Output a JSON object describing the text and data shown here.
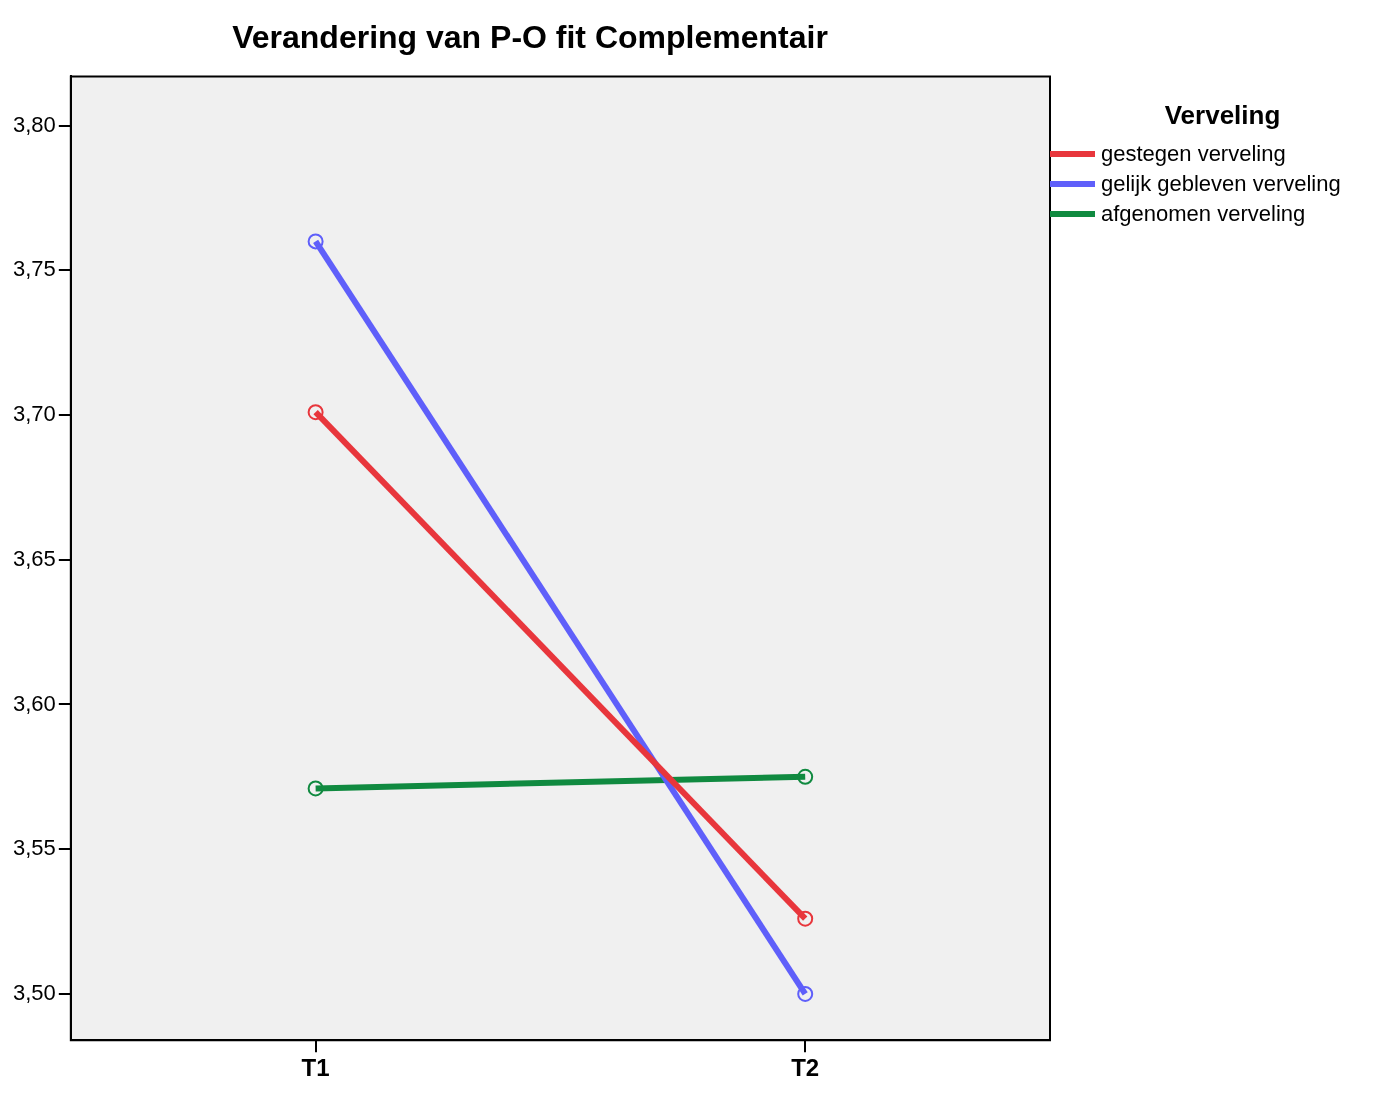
{
  "chart_data": {
    "type": "line",
    "title": "Verandering van P-O fit Complementair",
    "legend_title": "Verveling",
    "categories": [
      "T1",
      "T2"
    ],
    "series": [
      {
        "name": "gestegen verveling",
        "color": "#e8363c",
        "values": [
          3.701,
          3.526
        ]
      },
      {
        "name": "gelijk gebleven verveling",
        "color": "#5f5ffa",
        "values": [
          3.76,
          3.5
        ]
      },
      {
        "name": "afgenomen verveling",
        "color": "#108a40",
        "values": [
          3.571,
          3.575
        ]
      }
    ],
    "ylim": [
      3.484,
      3.817
    ],
    "yticks": [
      {
        "value": 3.5,
        "label": "3,50"
      },
      {
        "value": 3.55,
        "label": "3,55"
      },
      {
        "value": 3.6,
        "label": "3,60"
      },
      {
        "value": 3.65,
        "label": "3,65"
      },
      {
        "value": 3.7,
        "label": "3,70"
      },
      {
        "value": 3.75,
        "label": "3,75"
      },
      {
        "value": 3.8,
        "label": "3,80"
      }
    ],
    "grid": false,
    "legend": "top right",
    "marker": "circle",
    "line_style": "solid"
  }
}
